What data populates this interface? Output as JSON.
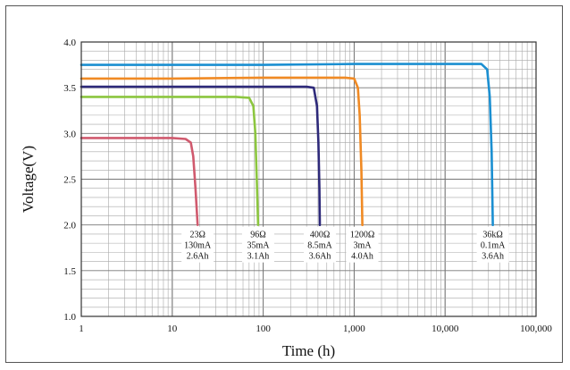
{
  "chart_data": {
    "type": "line",
    "title": "",
    "xlabel": "Time (h)",
    "ylabel": "Voltage(V)",
    "x_scale": "log",
    "xlim": [
      1,
      100000
    ],
    "ylim": [
      1.0,
      4.0
    ],
    "grid": true,
    "x_ticks": [
      "1",
      "10",
      "100",
      "1,000",
      "10,000",
      "100,000"
    ],
    "y_ticks": [
      "1.0",
      "1.5",
      "2.0",
      "2.5",
      "3.0",
      "3.5",
      "4.0"
    ],
    "series": [
      {
        "color": "#d05a6e",
        "label": [
          "23Ω",
          "130mA",
          "2.6Ah"
        ],
        "points": [
          [
            1,
            2.95
          ],
          [
            5,
            2.95
          ],
          [
            10,
            2.95
          ],
          [
            14,
            2.94
          ],
          [
            16,
            2.9
          ],
          [
            17,
            2.75
          ],
          [
            18,
            2.4
          ],
          [
            19,
            2.0
          ]
        ]
      },
      {
        "color": "#8cc63f",
        "label": [
          "96Ω",
          "35mA",
          "3.1Ah"
        ],
        "points": [
          [
            1,
            3.4
          ],
          [
            10,
            3.4
          ],
          [
            50,
            3.4
          ],
          [
            70,
            3.39
          ],
          [
            78,
            3.3
          ],
          [
            82,
            3.0
          ],
          [
            85,
            2.5
          ],
          [
            88,
            2.0
          ]
        ]
      },
      {
        "color": "#2e2a7a",
        "label": [
          "400Ω",
          "8.5mA",
          "3.6Ah"
        ],
        "points": [
          [
            1,
            3.51
          ],
          [
            10,
            3.51
          ],
          [
            100,
            3.51
          ],
          [
            300,
            3.51
          ],
          [
            360,
            3.5
          ],
          [
            390,
            3.3
          ],
          [
            405,
            2.9
          ],
          [
            415,
            2.4
          ],
          [
            420,
            2.0
          ]
        ]
      },
      {
        "color": "#f08a24",
        "label": [
          "1200Ω",
          "3mA",
          "4.0Ah"
        ],
        "points": [
          [
            1,
            3.6
          ],
          [
            10,
            3.6
          ],
          [
            100,
            3.61
          ],
          [
            800,
            3.61
          ],
          [
            1000,
            3.6
          ],
          [
            1100,
            3.5
          ],
          [
            1150,
            3.2
          ],
          [
            1200,
            2.6
          ],
          [
            1230,
            2.0
          ]
        ]
      },
      {
        "color": "#1b8fd1",
        "label": [
          "36kΩ",
          "0.1mA",
          "3.6Ah"
        ],
        "points": [
          [
            1,
            3.75
          ],
          [
            100,
            3.75
          ],
          [
            1000,
            3.76
          ],
          [
            10000,
            3.76
          ],
          [
            25000,
            3.76
          ],
          [
            29000,
            3.7
          ],
          [
            31000,
            3.4
          ],
          [
            32500,
            2.8
          ],
          [
            33500,
            2.0
          ]
        ]
      }
    ]
  }
}
